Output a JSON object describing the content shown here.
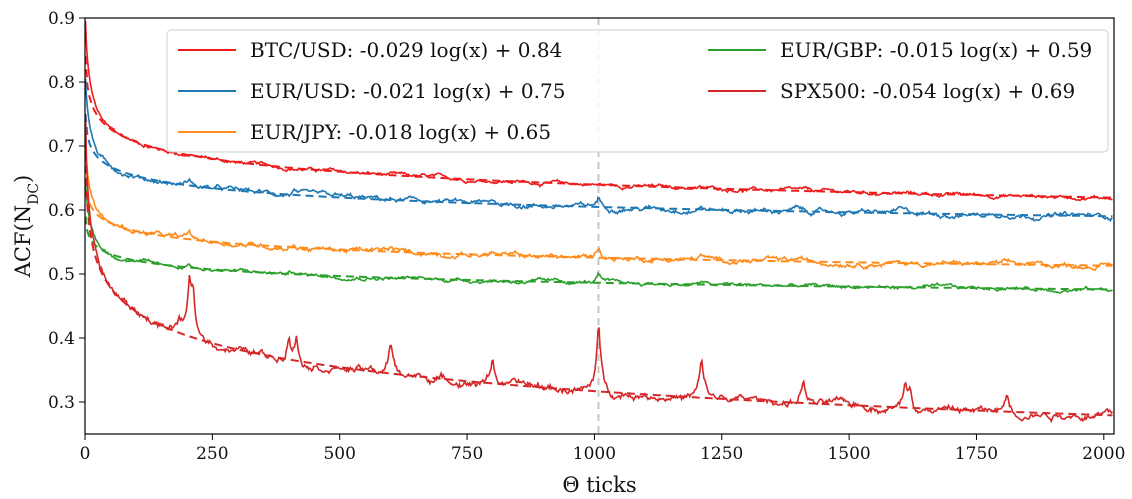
{
  "chart_data": {
    "type": "line",
    "xlabel": "Θ ticks",
    "ylabel_main": "ACF(N",
    "ylabel_sub": "DC",
    "ylabel_close": ")",
    "xlim": [
      0,
      2020
    ],
    "ylim": [
      0.25,
      0.9
    ],
    "xticks": [
      0,
      250,
      500,
      750,
      1000,
      1250,
      1500,
      1750,
      2000
    ],
    "yticks": [
      0.3,
      0.4,
      0.5,
      0.6,
      0.7,
      0.8,
      0.9
    ],
    "grid": false,
    "vline_x": 1008,
    "legend_position": "top-right",
    "series": [
      {
        "name": "BTC/USD: -0.029 log(x) + 0.84",
        "color": "#ee1c1c",
        "a": -0.029,
        "b": 0.84,
        "noise": 0.003,
        "bumps": []
      },
      {
        "name": "EUR/USD: -0.021 log(x) + 0.75",
        "color": "#1f77b4",
        "a": -0.021,
        "b": 0.75,
        "noise": 0.004,
        "bumps": [
          [
            205,
            0.012
          ],
          [
            410,
            0.008
          ],
          [
            800,
            0.008
          ],
          [
            1008,
            0.015
          ],
          [
            1210,
            0.008
          ],
          [
            1400,
            0.006
          ],
          [
            1600,
            0.006
          ],
          [
            1810,
            0.006
          ]
        ]
      },
      {
        "name": "EUR/JPY: -0.018 log(x) + 0.65",
        "color": "#ff8c1a",
        "a": -0.018,
        "b": 0.65,
        "noise": 0.004,
        "bumps": [
          [
            205,
            0.01
          ],
          [
            410,
            0.006
          ],
          [
            600,
            0.006
          ],
          [
            800,
            0.006
          ],
          [
            1008,
            0.018
          ],
          [
            1210,
            0.008
          ],
          [
            1400,
            0.005
          ]
        ]
      },
      {
        "name": "EUR/GBP: -0.015 log(x) + 0.59",
        "color": "#2ca02c",
        "a": -0.015,
        "b": 0.59,
        "noise": 0.003,
        "bumps": [
          [
            205,
            0.008
          ],
          [
            410,
            0.005
          ],
          [
            1008,
            0.015
          ],
          [
            1210,
            0.005
          ],
          [
            1810,
            0.004
          ]
        ]
      },
      {
        "name": "SPX500: -0.054 log(x) + 0.69",
        "color": "#d62728",
        "a": -0.054,
        "b": 0.69,
        "noise": 0.006,
        "bumps": [
          [
            185,
            0.025
          ],
          [
            205,
            0.07
          ],
          [
            212,
            0.06
          ],
          [
            400,
            0.045
          ],
          [
            415,
            0.04
          ],
          [
            600,
            0.05
          ],
          [
            800,
            0.045
          ],
          [
            1008,
            0.11
          ],
          [
            1210,
            0.06
          ],
          [
            1410,
            0.04
          ],
          [
            1610,
            0.04
          ],
          [
            1620,
            0.035
          ],
          [
            1810,
            0.03
          ]
        ]
      }
    ]
  }
}
